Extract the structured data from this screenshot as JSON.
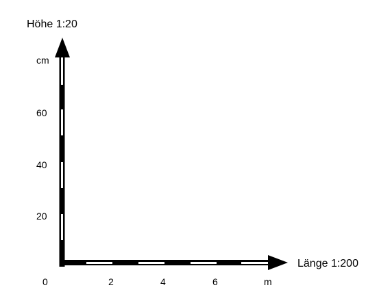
{
  "diagram": {
    "vertical_axis": {
      "title": "Höhe 1:20",
      "unit": "cm",
      "ticks": [
        "20",
        "40",
        "60"
      ]
    },
    "horizontal_axis": {
      "title": "Länge 1:200",
      "unit": "m",
      "origin": "0",
      "ticks": [
        "2",
        "4",
        "6"
      ]
    },
    "colors": {
      "dark": "#000000",
      "light": "#ffffff"
    }
  }
}
